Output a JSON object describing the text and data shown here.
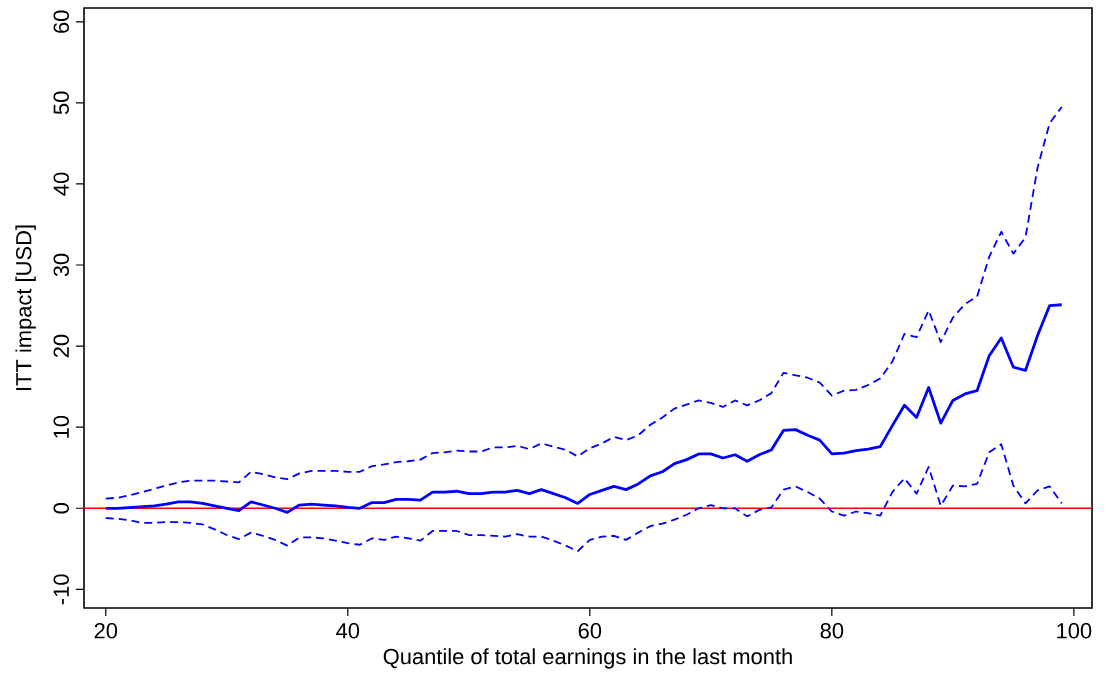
{
  "chart_data": {
    "type": "line",
    "xlabel": "Quantile of total earnings in the last month",
    "ylabel": "ITT impact [USD]",
    "x": [
      20,
      21,
      22,
      23,
      24,
      25,
      26,
      27,
      28,
      29,
      30,
      31,
      32,
      33,
      34,
      35,
      36,
      37,
      38,
      39,
      40,
      41,
      42,
      43,
      44,
      45,
      46,
      47,
      48,
      49,
      50,
      51,
      52,
      53,
      54,
      55,
      56,
      57,
      58,
      59,
      60,
      61,
      62,
      63,
      64,
      65,
      66,
      67,
      68,
      69,
      70,
      71,
      72,
      73,
      74,
      75,
      76,
      77,
      78,
      79,
      80,
      81,
      82,
      83,
      84,
      85,
      86,
      87,
      88,
      89,
      90,
      91,
      92,
      93,
      94,
      95,
      96,
      97,
      98,
      99
    ],
    "series": [
      {
        "color": "#0000ff",
        "line_style": "solid",
        "values": [
          0,
          0,
          0.1,
          0.2,
          0.3,
          0.5,
          0.8,
          0.8,
          0.6,
          0.3,
          0,
          -0.3,
          0.8,
          0.4,
          0,
          -0.5,
          0.4,
          0.5,
          0.4,
          0.3,
          0.1,
          0,
          0.7,
          0.7,
          1.1,
          1.1,
          1.0,
          2.0,
          2.0,
          2.1,
          1.8,
          1.8,
          2.0,
          2.0,
          2.2,
          1.8,
          2.3,
          1.8,
          1.3,
          0.6,
          1.7,
          2.2,
          2.7,
          2.3,
          3.0,
          4.0,
          4.5,
          5.5,
          6.0,
          6.7,
          6.7,
          6.2,
          6.6,
          5.8,
          6.6,
          7.2,
          9.6,
          9.7,
          9.0,
          8.4,
          6.7,
          6.8,
          7.1,
          7.3,
          7.6,
          10.2,
          12.7,
          11.2,
          14.9,
          10.5,
          13.3,
          14.1,
          14.5,
          18.8,
          21.0,
          17.4,
          17.0,
          21.3,
          25.0,
          25.1
        ]
      },
      {
        "color": "#0000ff",
        "line_style": "dashed",
        "values": [
          1.2,
          1.3,
          1.6,
          2.0,
          2.4,
          2.8,
          3.2,
          3.4,
          3.4,
          3.4,
          3.3,
          3.2,
          4.5,
          4.2,
          3.8,
          3.6,
          4.3,
          4.6,
          4.6,
          4.6,
          4.5,
          4.5,
          5.2,
          5.4,
          5.7,
          5.8,
          6.0,
          6.8,
          6.9,
          7.1,
          7.0,
          7.0,
          7.5,
          7.5,
          7.7,
          7.3,
          8.0,
          7.6,
          7.2,
          6.4,
          7.4,
          8.0,
          8.8,
          8.4,
          9.0,
          10.3,
          11.2,
          12.3,
          12.8,
          13.3,
          13.0,
          12.5,
          13.3,
          12.7,
          13.3,
          14.2,
          16.7,
          16.4,
          16.1,
          15.5,
          13.9,
          14.5,
          14.6,
          15.2,
          16.0,
          18.1,
          21.5,
          21.1,
          24.4,
          20.5,
          23.5,
          25.2,
          26.1,
          31.0,
          34.1,
          31.4,
          33.4,
          42,
          47.5,
          49.5
        ]
      },
      {
        "color": "#0000ff",
        "line_style": "dashed",
        "values": [
          -1.2,
          -1.3,
          -1.5,
          -1.8,
          -1.8,
          -1.7,
          -1.7,
          -1.8,
          -2.0,
          -2.6,
          -3.3,
          -3.8,
          -3.0,
          -3.4,
          -3.9,
          -4.6,
          -3.6,
          -3.6,
          -3.7,
          -4.0,
          -4.3,
          -4.5,
          -3.7,
          -3.9,
          -3.5,
          -3.7,
          -4.0,
          -2.8,
          -2.8,
          -2.8,
          -3.3,
          -3.3,
          -3.4,
          -3.5,
          -3.2,
          -3.5,
          -3.5,
          -4.0,
          -4.6,
          -5.3,
          -3.9,
          -3.5,
          -3.4,
          -3.9,
          -3.0,
          -2.2,
          -1.9,
          -1.4,
          -0.8,
          0,
          0.4,
          0,
          0,
          -1.0,
          -0.2,
          0.1,
          2.3,
          2.7,
          2.0,
          1.2,
          -0.4,
          -0.9,
          -0.4,
          -0.6,
          -0.9,
          2.0,
          3.7,
          1.8,
          5.1,
          0.3,
          2.8,
          2.7,
          3.0,
          6.9,
          7.9,
          2.8,
          0.6,
          2.2,
          2.7,
          0.6
        ]
      }
    ],
    "ref_lines": [
      {
        "axis": "y",
        "value": 0,
        "color": "#ff0000"
      }
    ],
    "xlim": [
      18.2,
      101.5
    ],
    "ylim": [
      -12.3,
      61.7
    ],
    "xticks": [
      20,
      40,
      60,
      80,
      100
    ],
    "yticks": [
      -10,
      0,
      10,
      20,
      30,
      40,
      50,
      60
    ],
    "marker": "none"
  }
}
